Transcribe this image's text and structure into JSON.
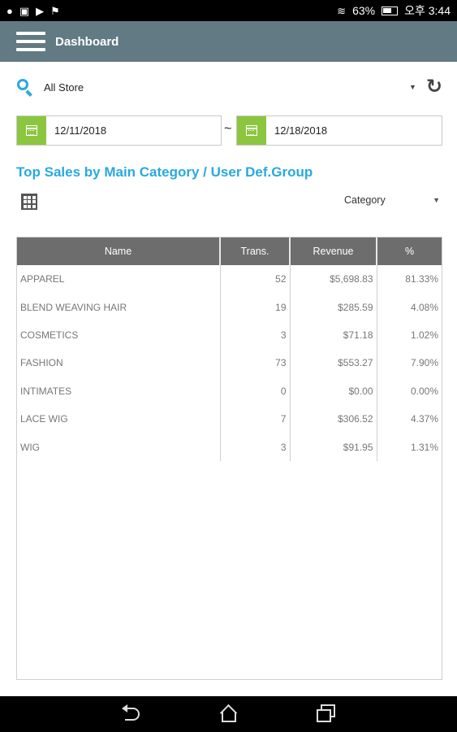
{
  "status_bar": {
    "battery": "63%",
    "time": "오후 3:44"
  },
  "app_bar": {
    "title": "Dashboard"
  },
  "filters": {
    "store": "All Store",
    "start_date": "12/11/2018",
    "end_date": "12/18/2018",
    "separator": "~"
  },
  "report": {
    "title": "Top Sales by Main Category / User Def.Group",
    "group_by": "Category",
    "columns": [
      "Name",
      "Trans.",
      "Revenue",
      "%"
    ],
    "rows": [
      [
        "APPAREL",
        "52",
        "$5,698.83",
        "81.33%"
      ],
      [
        "BLEND WEAVING HAIR",
        "19",
        "$285.59",
        "4.08%"
      ],
      [
        "COSMETICS",
        "3",
        "$71.18",
        "1.02%"
      ],
      [
        "FASHION",
        "73",
        "$553.27",
        "7.90%"
      ],
      [
        "INTIMATES",
        "0",
        "$0.00",
        "0.00%"
      ],
      [
        "LACE WIG",
        "7",
        "$306.52",
        "4.37%"
      ],
      [
        "WIG",
        "3",
        "$91.95",
        "1.31%"
      ]
    ]
  },
  "colors": {
    "app_bar": "#617a84",
    "accent_blue": "#29a9e0",
    "calendar_green": "#8cc63f",
    "table_header": "#6d6d6d"
  }
}
